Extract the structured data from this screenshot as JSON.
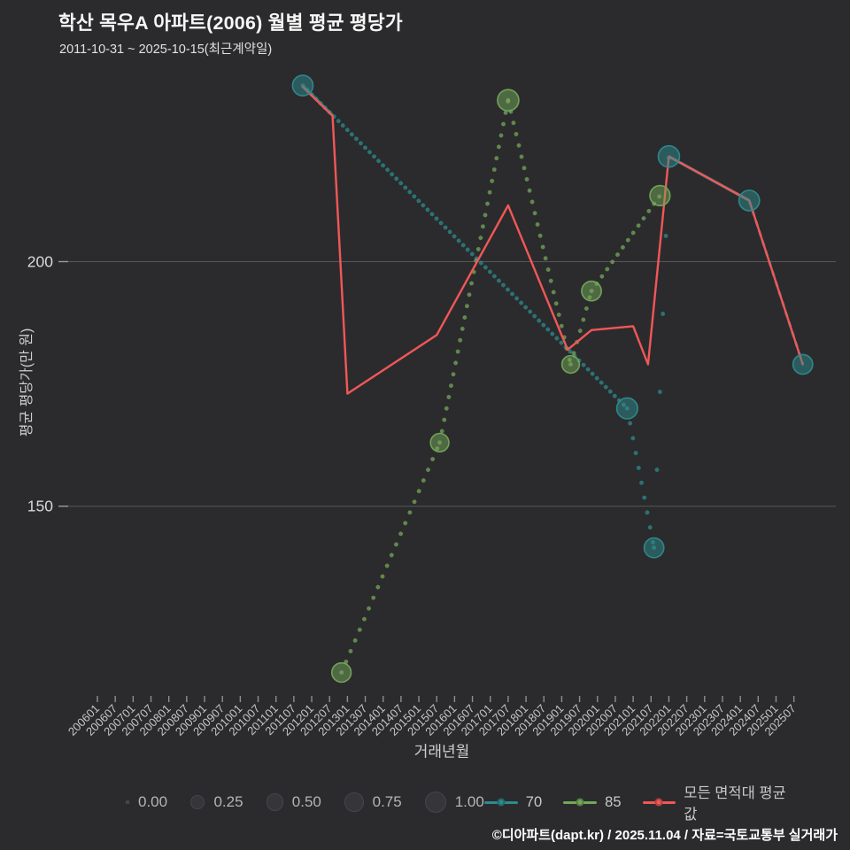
{
  "title": "학산 목우A 아파트(2006) 월별 평균 평당가",
  "subtitle": "2011-10-31 ~ 2025-10-15(최근계약일)",
  "footer": "©디아파트(dapt.kr) / 2025.11.04 / 자료=국토교통부 실거래가",
  "colors": {
    "background": "#2b2b2d",
    "teal": "#2e8b8d",
    "green": "#74a85a",
    "red": "#f25757",
    "grid": "#55565a",
    "tick_text": "#c6c6c6"
  },
  "legend": {
    "size": {
      "values": [
        "0.00",
        "0.25",
        "0.50",
        "0.75",
        "1.00"
      ]
    },
    "series": [
      {
        "label": "70",
        "color": "#2e8b8d"
      },
      {
        "label": "85",
        "color": "#74a85a"
      },
      {
        "label": "모든 면적대 평균값",
        "color": "#f25757"
      }
    ]
  },
  "chart_data": {
    "type": "scatter",
    "title": "학산 목우A 아파트(2006) 월별 평균 평당가",
    "xlabel": "거래년월",
    "ylabel": "평균 평당가(만 원)",
    "x_ticks": [
      "200601",
      "200607",
      "200701",
      "200707",
      "200801",
      "200807",
      "200901",
      "200907",
      "201001",
      "201007",
      "201101",
      "201107",
      "201201",
      "201207",
      "201301",
      "201307",
      "201401",
      "201407",
      "201501",
      "201507",
      "201601",
      "201607",
      "201701",
      "201707",
      "201801",
      "201807",
      "201901",
      "201907",
      "202001",
      "202007",
      "202101",
      "202107",
      "202201",
      "202207",
      "202301",
      "202307",
      "202401",
      "202407",
      "202501",
      "202507"
    ],
    "y_ticks": [
      150,
      200
    ],
    "ylim": [
      109,
      238
    ],
    "grid": "horizontal-only",
    "legend_position": "bottom",
    "series": [
      {
        "name": "70",
        "type": "scatter",
        "color": "#2e8b8d",
        "points": [
          {
            "month": "201110",
            "value": 236.0,
            "size": 0.9
          },
          {
            "month": "202011",
            "value": 170.0,
            "size": 0.95
          },
          {
            "month": "202108",
            "value": 141.5,
            "size": 0.8
          },
          {
            "month": "202201",
            "value": 221.5,
            "size": 1.0
          },
          {
            "month": "202404",
            "value": 212.5,
            "size": 0.9
          },
          {
            "month": "202510",
            "value": 179.0,
            "size": 0.8
          }
        ]
      },
      {
        "name": "85",
        "type": "scatter",
        "color": "#74a85a",
        "points": [
          {
            "month": "201211",
            "value": 116.0,
            "size": 0.75
          },
          {
            "month": "201508",
            "value": 163.0,
            "size": 0.65
          },
          {
            "month": "201707",
            "value": 233.0,
            "size": 1.0
          },
          {
            "month": "201904",
            "value": 179.0,
            "size": 0.55
          },
          {
            "month": "201911",
            "value": 194.0,
            "size": 0.8
          },
          {
            "month": "202110",
            "value": 213.5,
            "size": 0.85
          }
        ]
      },
      {
        "name": "모든 면적대 평균값",
        "type": "line",
        "color": "#f25757",
        "points": [
          [
            "201110",
            235.7
          ],
          [
            "201208",
            229.8
          ],
          [
            "201301",
            173.0
          ],
          [
            "201507",
            185.0
          ],
          [
            "201707",
            211.5
          ],
          [
            "201903",
            182.0
          ],
          [
            "201911",
            186.0
          ],
          [
            "202101",
            186.8
          ],
          [
            "202106",
            179.0
          ],
          [
            "202201",
            221.5
          ],
          [
            "202404",
            212.5
          ],
          [
            "202510",
            179.0
          ]
        ]
      }
    ],
    "connectors": [
      {
        "series": "70",
        "segments": [
          {
            "from": 0,
            "to": 1,
            "style": "dot",
            "gap": 7,
            "solid_head": 48
          },
          {
            "from": 1,
            "to": 2,
            "style": "dot",
            "gap": 17
          },
          {
            "from": 2,
            "to": 3,
            "style": "dot",
            "gap": 88
          },
          {
            "from": 3,
            "to": 4,
            "style": "solid"
          },
          {
            "from": 4,
            "to": 5,
            "style": "dash"
          }
        ]
      },
      {
        "series": "85",
        "segments": [
          {
            "from": 0,
            "to": 1,
            "style": "dot",
            "gap": 13
          },
          {
            "from": 1,
            "to": 2,
            "style": "dot",
            "gap": 13
          },
          {
            "from": 2,
            "to": 3,
            "style": "dot",
            "gap": 13
          },
          {
            "from": 3,
            "to": 4,
            "style": "dot",
            "gap": 13
          },
          {
            "from": 4,
            "to": 5,
            "style": "dot",
            "gap": 10
          }
        ]
      }
    ]
  }
}
